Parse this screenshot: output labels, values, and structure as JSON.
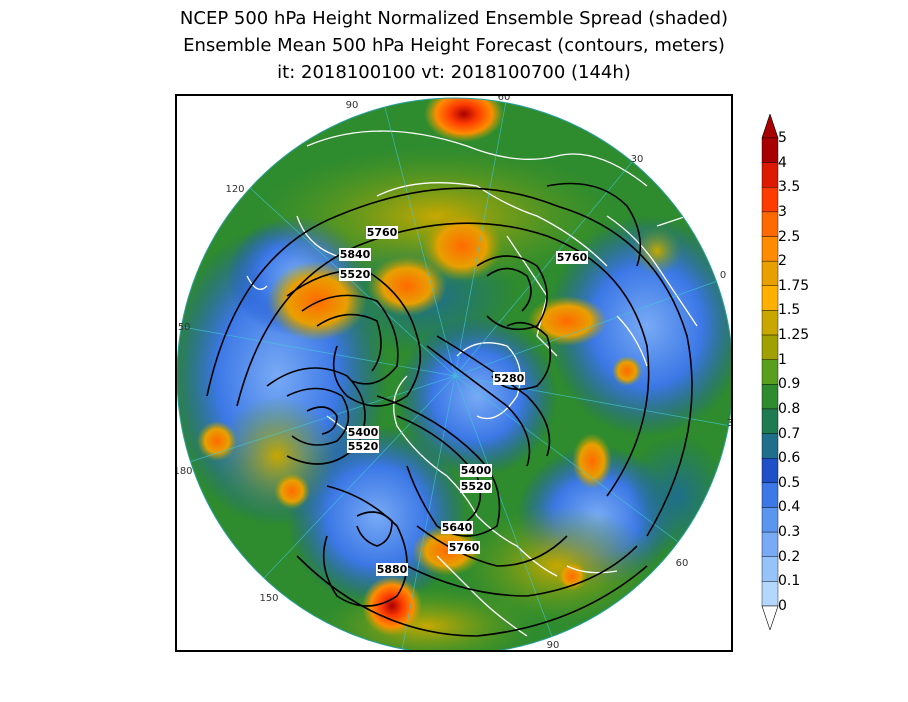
{
  "title": {
    "line1": "NCEP 500 hPa Height Normalized Ensemble Spread (shaded)",
    "line2": "Ensemble Mean 500 hPa Height Forecast (contours, meters)",
    "line3": "it: 2018100100       vt: 2018100700 (144h)"
  },
  "colorbar": {
    "labels": [
      "5",
      "4",
      "3.5",
      "3",
      "2.5",
      "2",
      "1.75",
      "1.5",
      "1.25",
      "1",
      "0.9",
      "0.8",
      "0.7",
      "0.6",
      "0.5",
      "0.4",
      "0.3",
      "0.2",
      "0.1",
      "0"
    ],
    "colors": [
      "#a80000",
      "#dc1a00",
      "#ff3c00",
      "#ff6a00",
      "#ff8c00",
      "#e8a000",
      "#ffb000",
      "#c8a800",
      "#a0a000",
      "#5a9e1e",
      "#2e8b2e",
      "#1e7a50",
      "#1e6e8c",
      "#1e50c8",
      "#3c78e6",
      "#5a96f0",
      "#78aaf5",
      "#96c3fa",
      "#b4d7ff"
    ]
  },
  "contour_labels": [
    "5760",
    "5760",
    "5840",
    "5520",
    "5280",
    "5400",
    "5520",
    "5400",
    "5520",
    "5640",
    "5760",
    "5880"
  ],
  "longitude_labels": [
    "90",
    "60",
    "30",
    "0",
    "30",
    "60",
    "90",
    "120",
    "150",
    "180",
    "150",
    "120"
  ],
  "colors": {
    "land_outline": "#ffffff",
    "contour": "#000000"
  }
}
